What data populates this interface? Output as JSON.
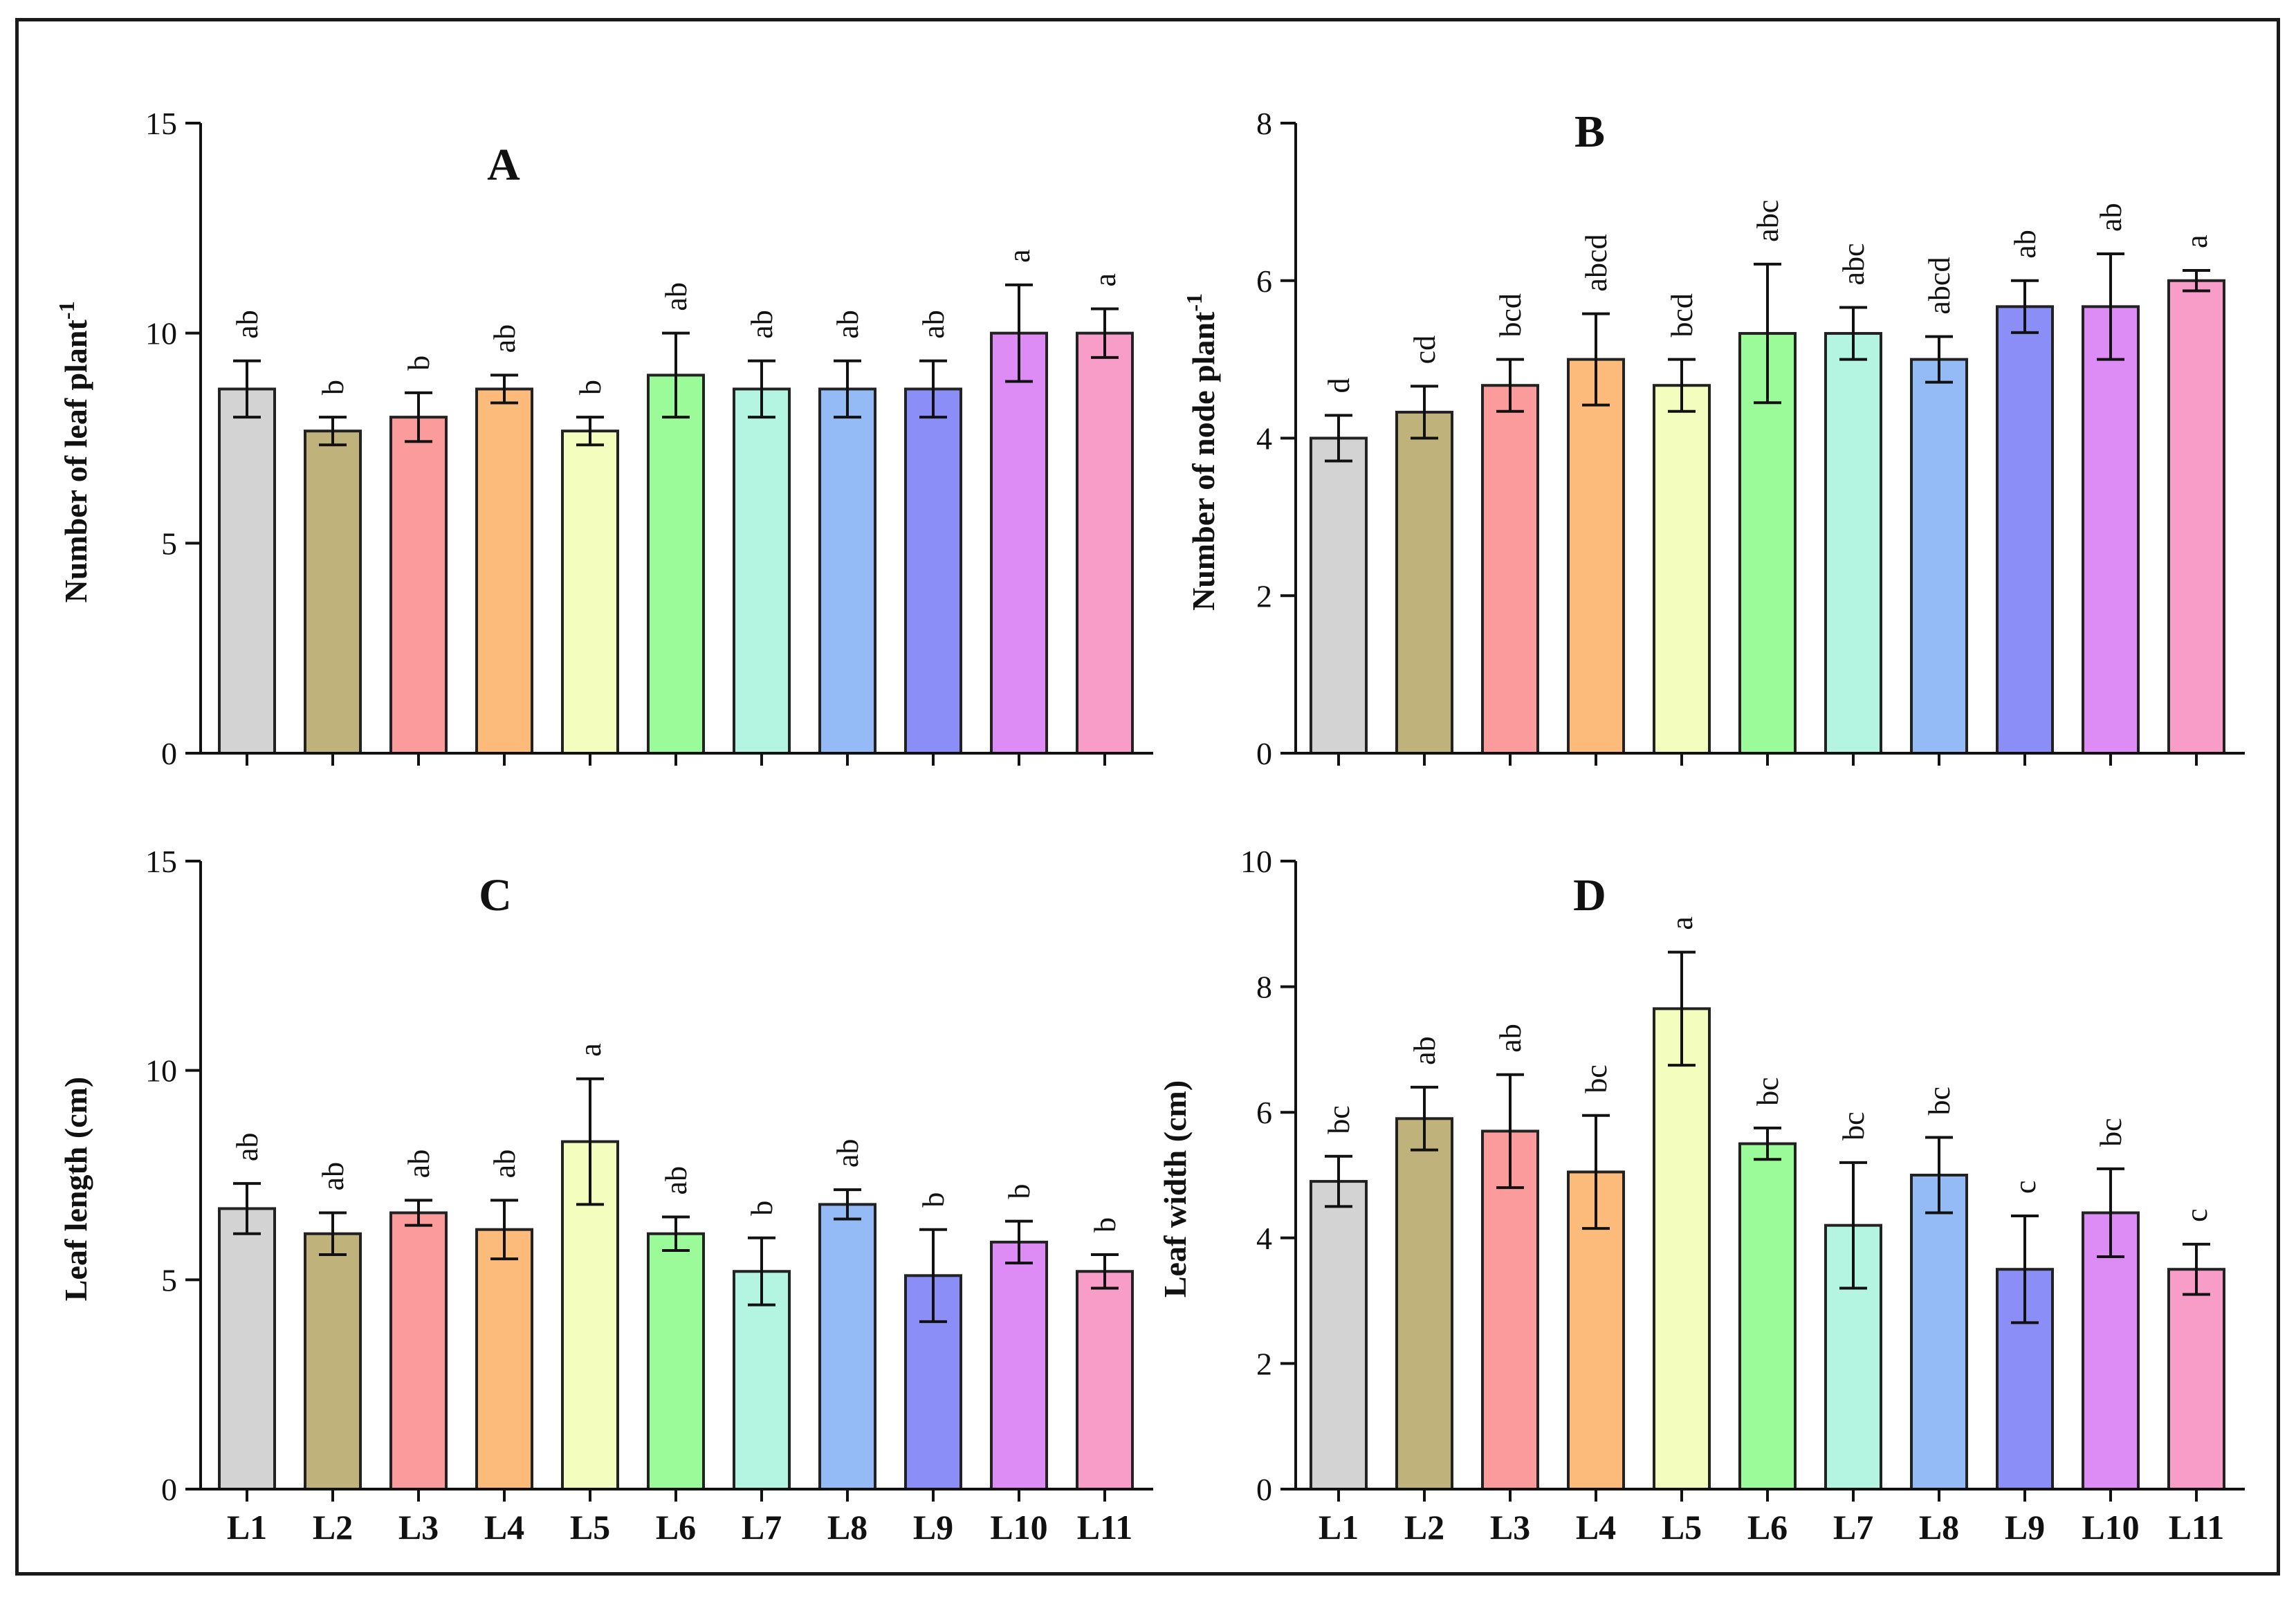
{
  "colors": [
    "#d3d3d3",
    "#bfb27a",
    "#fb9b9b",
    "#fdbb7b",
    "#f3fdbd",
    "#9cfb99",
    "#b3f5e0",
    "#95bbf6",
    "#8c8ef8",
    "#dc8cf4",
    "#f79dc7"
  ],
  "chart_data": [
    {
      "type": "bar",
      "panel": "A",
      "title": "A",
      "ylabel": "Number of leaf plant",
      "ylabel_sup": "-1",
      "categories": [
        "L1",
        "L2",
        "L3",
        "L4",
        "L5",
        "L6",
        "L7",
        "L8",
        "L9",
        "L10",
        "L11"
      ],
      "show_xlabels": false,
      "ylim": [
        0,
        15
      ],
      "yticks": [
        0,
        5,
        10,
        15
      ],
      "values": [
        8.67,
        7.67,
        8.0,
        8.67,
        7.67,
        9.0,
        8.67,
        8.67,
        8.67,
        10.0,
        10.0
      ],
      "errors": [
        0.67,
        0.33,
        0.58,
        0.33,
        0.33,
        1.0,
        0.67,
        0.67,
        0.67,
        1.15,
        0.58
      ],
      "letters": [
        "ab",
        "b",
        "b",
        "ab",
        "b",
        "ab",
        "ab",
        "ab",
        "ab",
        "a",
        "a"
      ]
    },
    {
      "type": "bar",
      "panel": "B",
      "title": "B",
      "ylabel": "Number of node plant",
      "ylabel_sup": "-1",
      "categories": [
        "L1",
        "L2",
        "L3",
        "L4",
        "L5",
        "L6",
        "L7",
        "L8",
        "L9",
        "L10",
        "L11"
      ],
      "show_xlabels": false,
      "ylim": [
        0,
        8
      ],
      "yticks": [
        0,
        2,
        4,
        6,
        8
      ],
      "values": [
        4.0,
        4.33,
        4.67,
        5.0,
        4.67,
        5.33,
        5.33,
        5.0,
        5.67,
        5.67,
        6.0
      ],
      "errors": [
        0.29,
        0.33,
        0.33,
        0.58,
        0.33,
        0.88,
        0.33,
        0.29,
        0.33,
        0.67,
        0.13
      ],
      "letters": [
        "d",
        "cd",
        "bcd",
        "abcd",
        "bcd",
        "abc",
        "abc",
        "abcd",
        "ab",
        "ab",
        "a"
      ]
    },
    {
      "type": "bar",
      "panel": "C",
      "title": "C",
      "ylabel": "Leaf length (cm)",
      "ylabel_sup": "",
      "categories": [
        "L1",
        "L2",
        "L3",
        "L4",
        "L5",
        "L6",
        "L7",
        "L8",
        "L9",
        "L10",
        "L11"
      ],
      "show_xlabels": true,
      "ylim": [
        0,
        15
      ],
      "yticks": [
        0,
        5,
        10,
        15
      ],
      "values": [
        6.7,
        6.1,
        6.6,
        6.2,
        8.3,
        6.1,
        5.2,
        6.8,
        5.1,
        5.9,
        5.2
      ],
      "errors": [
        0.6,
        0.5,
        0.3,
        0.7,
        1.5,
        0.4,
        0.8,
        0.35,
        1.1,
        0.5,
        0.4
      ],
      "letters": [
        "ab",
        "ab",
        "ab",
        "ab",
        "a",
        "ab",
        "b",
        "ab",
        "b",
        "b",
        "b"
      ]
    },
    {
      "type": "bar",
      "panel": "D",
      "title": "D",
      "ylabel": "Leaf width (cm)",
      "ylabel_sup": "",
      "categories": [
        "L1",
        "L2",
        "L3",
        "L4",
        "L5",
        "L6",
        "L7",
        "L8",
        "L9",
        "L10",
        "L11"
      ],
      "show_xlabels": true,
      "ylim": [
        0,
        10
      ],
      "yticks": [
        0,
        2,
        4,
        6,
        8,
        10
      ],
      "values": [
        4.9,
        5.9,
        5.7,
        5.05,
        7.65,
        5.5,
        4.2,
        5.0,
        3.5,
        4.4,
        3.5
      ],
      "errors": [
        0.4,
        0.5,
        0.9,
        0.9,
        0.9,
        0.25,
        1.0,
        0.6,
        0.85,
        0.7,
        0.4
      ],
      "letters": [
        "bc",
        "ab",
        "ab",
        "bc",
        "a",
        "bc",
        "bc",
        "bc",
        "c",
        "bc",
        "c"
      ]
    }
  ]
}
